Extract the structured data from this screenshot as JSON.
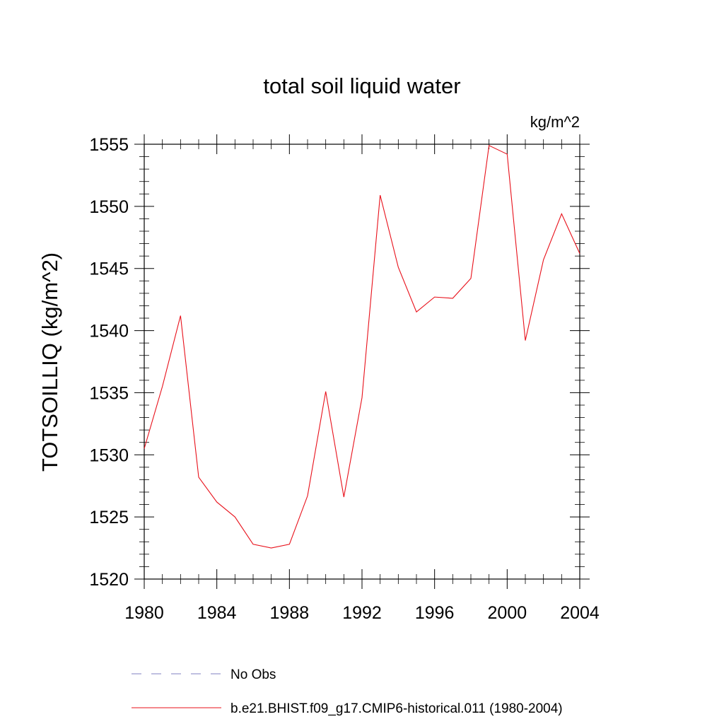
{
  "chart_data": {
    "type": "line",
    "title": "total soil liquid water",
    "units": "kg/m^2",
    "xlabel": "",
    "ylabel": "TOTSOILLIQ  (kg/m^2)",
    "xlim": [
      1980,
      2004
    ],
    "ylim": [
      1520,
      1555
    ],
    "xticks": [
      "1980",
      "1984",
      "1988",
      "1992",
      "1996",
      "2000",
      "2004"
    ],
    "yticks": [
      "1520",
      "1525",
      "1530",
      "1535",
      "1540",
      "1545",
      "1550",
      "1555"
    ],
    "grid": false,
    "legend_position": "bottom",
    "series": [
      {
        "name": "No Obs",
        "color": "#8080c0",
        "dash": "dashed",
        "x": [],
        "values": []
      },
      {
        "name": "b.e21.BHIST.f09_g17.CMIP6-historical.011 (1980-2004)",
        "color": "#e8101a",
        "dash": "solid",
        "x": [
          1980,
          1981,
          1982,
          1983,
          1984,
          1985,
          1986,
          1987,
          1988,
          1989,
          1990,
          1991,
          1992,
          1993,
          1994,
          1995,
          1996,
          1997,
          1998,
          1999,
          2000,
          2001,
          2002,
          2003,
          2004
        ],
        "values": [
          1530.5,
          1535.5,
          1541.2,
          1528.2,
          1526.2,
          1525.0,
          1522.8,
          1522.5,
          1522.8,
          1526.7,
          1535.1,
          1526.6,
          1534.6,
          1550.9,
          1545.1,
          1541.5,
          1542.7,
          1542.6,
          1544.2,
          1554.9,
          1554.2,
          1539.2,
          1545.7,
          1549.4,
          1546.2
        ]
      }
    ]
  }
}
